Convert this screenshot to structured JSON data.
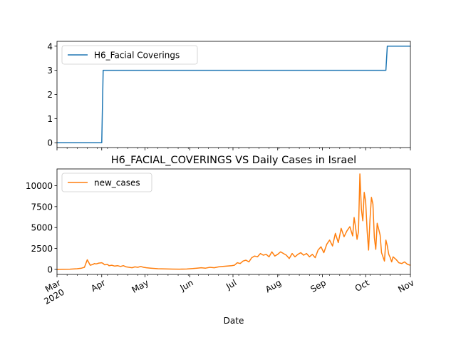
{
  "chart_data": [
    {
      "type": "line",
      "title": "",
      "xlabel": "",
      "ylabel": "",
      "x_range": [
        "2020-03-01",
        "2020-11-01"
      ],
      "ylim": [
        -0.2,
        4.2
      ],
      "y_ticks": [
        0,
        1,
        2,
        3,
        4
      ],
      "y_tick_labels": [
        "0",
        "1",
        "2",
        "3",
        "4"
      ],
      "grid": false,
      "legend_position": "upper-left",
      "series": [
        {
          "name": "H6_Facial Coverings",
          "color": "#1f77b4",
          "x": [
            "2020-03-01",
            "2020-04-01",
            "2020-04-02",
            "2020-10-15",
            "2020-10-16",
            "2020-11-01"
          ],
          "values": [
            0,
            0,
            3,
            3,
            4,
            4
          ]
        }
      ]
    },
    {
      "type": "line",
      "title": "H6_FACIAL_COVERINGS VS Daily Cases in Israel",
      "xlabel": "Date",
      "ylabel": "",
      "x_range": [
        "2020-03-01",
        "2020-11-01"
      ],
      "x_ticks": [
        "2020-03-01",
        "2020-04-01",
        "2020-05-01",
        "2020-06-01",
        "2020-07-01",
        "2020-08-01",
        "2020-09-01",
        "2020-10-01",
        "2020-11-01"
      ],
      "x_tick_labels": [
        "Mar\n2020",
        "Apr",
        "May",
        "Jun",
        "Jul",
        "Aug",
        "Sep",
        "Oct",
        "Nov"
      ],
      "ylim": [
        -600,
        12000
      ],
      "y_ticks": [
        0,
        2500,
        5000,
        7500,
        10000
      ],
      "y_tick_labels": [
        "0",
        "2500",
        "5000",
        "7500",
        "10000"
      ],
      "grid": false,
      "legend_position": "upper-left",
      "series": [
        {
          "name": "new_cases",
          "color": "#ff7f0e",
          "x": [
            "2020-03-01",
            "2020-03-05",
            "2020-03-10",
            "2020-03-15",
            "2020-03-18",
            "2020-03-20",
            "2020-03-22",
            "2020-03-24",
            "2020-03-25",
            "2020-03-26",
            "2020-03-27",
            "2020-03-28",
            "2020-03-30",
            "2020-04-01",
            "2020-04-02",
            "2020-04-03",
            "2020-04-05",
            "2020-04-06",
            "2020-04-08",
            "2020-04-10",
            "2020-04-12",
            "2020-04-14",
            "2020-04-16",
            "2020-04-18",
            "2020-04-20",
            "2020-04-22",
            "2020-04-24",
            "2020-04-26",
            "2020-04-28",
            "2020-04-30",
            "2020-05-02",
            "2020-05-05",
            "2020-05-10",
            "2020-05-15",
            "2020-05-20",
            "2020-05-25",
            "2020-05-30",
            "2020-06-03",
            "2020-06-06",
            "2020-06-09",
            "2020-06-12",
            "2020-06-15",
            "2020-06-18",
            "2020-06-21",
            "2020-06-24",
            "2020-06-27",
            "2020-06-30",
            "2020-07-02",
            "2020-07-04",
            "2020-07-06",
            "2020-07-08",
            "2020-07-10",
            "2020-07-12",
            "2020-07-14",
            "2020-07-16",
            "2020-07-18",
            "2020-07-20",
            "2020-07-22",
            "2020-07-24",
            "2020-07-26",
            "2020-07-28",
            "2020-07-30",
            "2020-08-01",
            "2020-08-03",
            "2020-08-05",
            "2020-08-07",
            "2020-08-09",
            "2020-08-11",
            "2020-08-13",
            "2020-08-15",
            "2020-08-17",
            "2020-08-19",
            "2020-08-21",
            "2020-08-23",
            "2020-08-25",
            "2020-08-27",
            "2020-08-29",
            "2020-08-31",
            "2020-09-02",
            "2020-09-04",
            "2020-09-06",
            "2020-09-08",
            "2020-09-10",
            "2020-09-12",
            "2020-09-14",
            "2020-09-16",
            "2020-09-18",
            "2020-09-20",
            "2020-09-22",
            "2020-09-23",
            "2020-09-24",
            "2020-09-25",
            "2020-09-26",
            "2020-09-27",
            "2020-09-28",
            "2020-09-29",
            "2020-09-30",
            "2020-10-01",
            "2020-10-02",
            "2020-10-03",
            "2020-10-04",
            "2020-10-05",
            "2020-10-06",
            "2020-10-07",
            "2020-10-08",
            "2020-10-09",
            "2020-10-10",
            "2020-10-11",
            "2020-10-12",
            "2020-10-13",
            "2020-10-14",
            "2020-10-15",
            "2020-10-16",
            "2020-10-17",
            "2020-10-18",
            "2020-10-19",
            "2020-10-20",
            "2020-10-22",
            "2020-10-24",
            "2020-10-26",
            "2020-10-28",
            "2020-10-30",
            "2020-11-01"
          ],
          "values": [
            0,
            10,
            30,
            80,
            150,
            250,
            1150,
            500,
            550,
            600,
            700,
            650,
            750,
            800,
            700,
            550,
            600,
            450,
            500,
            400,
            450,
            350,
            450,
            300,
            250,
            200,
            300,
            250,
            350,
            250,
            200,
            150,
            80,
            60,
            40,
            30,
            50,
            100,
            150,
            200,
            150,
            250,
            200,
            300,
            350,
            400,
            450,
            500,
            800,
            700,
            1000,
            1100,
            900,
            1400,
            1600,
            1500,
            1900,
            1700,
            1800,
            1500,
            2100,
            1600,
            1800,
            2100,
            1900,
            1700,
            1300,
            1900,
            1500,
            1800,
            2000,
            1700,
            1900,
            1500,
            1800,
            1400,
            2300,
            2700,
            2000,
            3000,
            3500,
            2800,
            4300,
            3200,
            4900,
            3900,
            4600,
            5100,
            4000,
            6200,
            5000,
            3600,
            4500,
            11400,
            7200,
            5800,
            9200,
            8100,
            4600,
            2300,
            6000,
            8600,
            7800,
            3800,
            2400,
            5500,
            4800,
            4100,
            2000,
            1500,
            1000,
            3500,
            2800,
            1800,
            1400,
            900,
            1500,
            1200,
            800,
            700,
            900,
            600,
            500
          ]
        }
      ]
    }
  ]
}
